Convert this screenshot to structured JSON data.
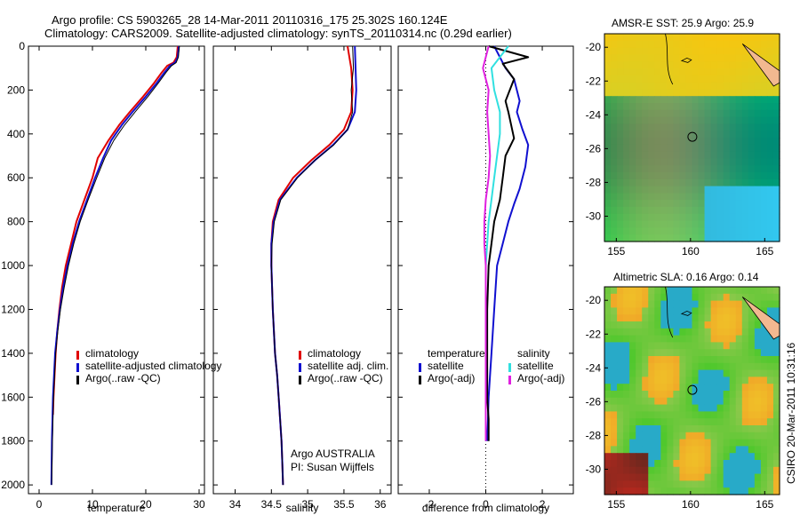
{
  "title_line1": "Argo profile: CS 5903265_28 14-Mar-2011 20110316_175 25.302S 160.124E",
  "title_line2": "Climatology: CARS2009. Satellite-adjusted climatology: synTS_20110314.nc (0.29d earlier)",
  "side_label": "CSIRO 20-Mar-2011 10:31:16",
  "colors": {
    "climatology": "#e00000",
    "satellite": "#1010d0",
    "argo": "#000000",
    "sat_salinity": "#30e0e0",
    "argo_salinity": "#e020e0"
  },
  "chart_data": [
    {
      "id": "temperature",
      "type": "line",
      "xlabel": "temperature",
      "xlim": [
        -2,
        31
      ],
      "ylim": [
        0,
        2040
      ],
      "xticks": [
        0,
        10,
        20,
        30
      ],
      "yticks": [
        0,
        200,
        400,
        600,
        800,
        1000,
        1200,
        1400,
        1600,
        1800,
        2000
      ],
      "ytick_labels": [
        "0",
        "200",
        "400",
        "600",
        "800",
        "1000",
        "1200",
        "1400",
        "1600",
        "1800",
        "2000"
      ],
      "legend": [
        "climatology",
        "satellite-adjusted climatology",
        "Argo(..raw -QC)"
      ],
      "series": [
        {
          "name": "climatology",
          "color": "#e00000",
          "width": 2,
          "x": [
            26,
            25.8,
            25.2,
            24,
            23,
            21.5,
            19.5,
            17,
            15,
            13,
            11,
            10,
            8.5,
            7,
            6,
            5,
            4.3,
            3.8,
            3.4,
            3.1,
            2.9,
            2.7,
            2.6
          ],
          "y": [
            0,
            50,
            75,
            90,
            120,
            170,
            230,
            300,
            360,
            430,
            510,
            600,
            700,
            800,
            900,
            1000,
            1100,
            1200,
            1300,
            1400,
            1500,
            1600,
            1680
          ]
        },
        {
          "name": "satellite",
          "color": "#1010d0",
          "width": 2,
          "x": [
            26.2,
            26,
            25.5,
            24.5,
            23.5,
            22,
            20,
            17.5,
            15.5,
            13.5,
            12,
            10.5,
            9,
            7.5,
            6.3,
            5.3,
            4.5,
            3.9,
            3.4,
            3,
            2.8,
            2.6,
            2.4,
            2.3
          ],
          "y": [
            0,
            50,
            75,
            90,
            120,
            170,
            230,
            300,
            360,
            430,
            510,
            600,
            700,
            800,
            900,
            1000,
            1100,
            1200,
            1300,
            1400,
            1500,
            1600,
            1800,
            2000
          ]
        },
        {
          "name": "argo",
          "color": "#000000",
          "width": 1,
          "x": [
            26.3,
            26.1,
            25.7,
            24.8,
            23.8,
            22.3,
            20.4,
            18,
            16,
            14,
            12.3,
            10.8,
            9.2,
            7.7,
            6.5,
            5.5,
            4.7,
            4,
            3.5,
            3.1,
            2.9,
            2.7,
            2.5,
            2.35
          ],
          "y": [
            0,
            50,
            75,
            90,
            120,
            170,
            230,
            300,
            360,
            430,
            510,
            600,
            700,
            800,
            900,
            1000,
            1100,
            1200,
            1300,
            1400,
            1500,
            1600,
            1800,
            2000
          ]
        }
      ]
    },
    {
      "id": "salinity",
      "type": "line",
      "xlabel": "salinity",
      "xlim": [
        33.7,
        36.15
      ],
      "ylim": [
        0,
        2040
      ],
      "xticks": [
        34,
        34.5,
        35,
        35.5,
        36
      ],
      "legend": [
        "climatology",
        "satellite adj. clim.",
        "Argo(..raw -QC)"
      ],
      "annotation": [
        "Argo AUSTRALIA",
        "PI: Susan Wijffels"
      ],
      "series": [
        {
          "name": "climatology",
          "color": "#e00000",
          "width": 2,
          "x": [
            35.55,
            35.6,
            35.62,
            35.6,
            35.5,
            35.3,
            35.05,
            34.8,
            34.6,
            34.52,
            34.5,
            34.5,
            34.52,
            34.55,
            34.58,
            34.6,
            34.62,
            34.64,
            34.65,
            34.66
          ],
          "y": [
            0,
            100,
            200,
            300,
            380,
            450,
            520,
            600,
            700,
            800,
            900,
            1000,
            1200,
            1400,
            1500,
            1600,
            1700,
            1800,
            1900,
            2000
          ]
        },
        {
          "name": "satellite",
          "color": "#1010d0",
          "width": 2,
          "x": [
            35.65,
            35.66,
            35.67,
            35.65,
            35.55,
            35.35,
            35.1,
            34.85,
            34.62,
            34.53,
            34.5,
            34.5,
            34.52,
            34.55,
            34.58,
            34.6,
            34.62,
            34.64,
            34.65,
            34.66
          ],
          "y": [
            0,
            100,
            200,
            300,
            380,
            450,
            520,
            600,
            700,
            800,
            900,
            1000,
            1200,
            1400,
            1500,
            1600,
            1700,
            1800,
            1900,
            2000
          ]
        },
        {
          "name": "argo",
          "color": "#000000",
          "width": 1,
          "x": [
            35.62,
            35.63,
            35.6,
            35.62,
            35.55,
            35.36,
            35.1,
            34.86,
            34.63,
            34.54,
            34.51,
            34.5,
            34.52,
            34.55,
            34.58,
            34.6,
            34.62,
            34.64,
            34.65,
            34.66
          ],
          "y": [
            0,
            100,
            200,
            300,
            380,
            450,
            520,
            600,
            700,
            800,
            900,
            1000,
            1200,
            1400,
            1500,
            1600,
            1700,
            1800,
            1900,
            2000
          ]
        }
      ]
    },
    {
      "id": "difference",
      "type": "line",
      "xlabel": "difference from climatology",
      "xlim": [
        -3.1,
        3.1
      ],
      "ylim": [
        0,
        2040
      ],
      "xticks": [
        -2,
        0,
        2
      ],
      "legend_temperature_title": "temperature",
      "legend_salinity_title": "salinity",
      "legend": [
        "satellite",
        "Argo(-adj)",
        "satellite",
        "Argo(-adj)"
      ],
      "series": [
        {
          "name": "temp satellite",
          "color": "#1010d0",
          "width": 2,
          "x": [
            0.3,
            0.7,
            1,
            1.2,
            1.1,
            1.3,
            1.5,
            1.4,
            1.2,
            1,
            0.8,
            0.6,
            0.4,
            0.3,
            0.2,
            0.15,
            0.1,
            0.08,
            0.05
          ],
          "y": [
            0,
            100,
            150,
            250,
            300,
            380,
            450,
            550,
            650,
            720,
            800,
            900,
            1000,
            1200,
            1400,
            1500,
            1600,
            1700,
            1800
          ]
        },
        {
          "name": "temp argo",
          "color": "#000000",
          "width": 2,
          "x": [
            0.1,
            1.5,
            0.6,
            1,
            0.7,
            0.8,
            1,
            0.7,
            0.6,
            0.5,
            0.3,
            0.2,
            0.1,
            0.05,
            0.05,
            0.05,
            0.05,
            0.1,
            0.1
          ],
          "y": [
            0,
            50,
            80,
            150,
            250,
            300,
            420,
            500,
            600,
            700,
            800,
            900,
            1000,
            1200,
            1400,
            1500,
            1600,
            1700,
            1800
          ]
        },
        {
          "name": "sal satellite",
          "color": "#30e0e0",
          "width": 2,
          "x": [
            0.8,
            0.2,
            0.3,
            0.5,
            0.5,
            0.4,
            0.3,
            0.2,
            0.1,
            0.05,
            0,
            0,
            0,
            0,
            0
          ],
          "y": [
            0,
            100,
            200,
            300,
            400,
            500,
            600,
            700,
            800,
            900,
            1000,
            1200,
            1400,
            1600,
            1800
          ]
        },
        {
          "name": "sal argo",
          "color": "#e020e0",
          "width": 2,
          "x": [
            0.1,
            -0.1,
            0.1,
            0.05,
            0.1,
            0.15,
            0.1,
            0,
            -0.05,
            -0.05,
            0,
            0,
            0,
            0,
            0
          ],
          "y": [
            0,
            100,
            200,
            300,
            400,
            500,
            600,
            700,
            800,
            900,
            1000,
            1200,
            1400,
            1600,
            1800
          ]
        }
      ]
    },
    {
      "id": "sst_map",
      "type": "heatmap",
      "title": "AMSR-E SST: 25.9 Argo: 25.9",
      "xlim": [
        154.2,
        166
      ],
      "ylim": [
        -31.5,
        -19.2
      ],
      "xticks": [
        155,
        160,
        165
      ],
      "yticks": [
        -20,
        -22,
        -24,
        -26,
        -28,
        -30
      ],
      "marker": [
        160.124,
        -25.302
      ]
    },
    {
      "id": "sla_map",
      "type": "heatmap",
      "title": "Altimetric SLA: 0.16 Argo: 0.14",
      "xlim": [
        154.2,
        166
      ],
      "ylim": [
        -31.5,
        -19.2
      ],
      "xticks": [
        155,
        160,
        165
      ],
      "yticks": [
        -20,
        -22,
        -24,
        -26,
        -28,
        -30
      ],
      "marker": [
        160.124,
        -25.302
      ]
    }
  ]
}
